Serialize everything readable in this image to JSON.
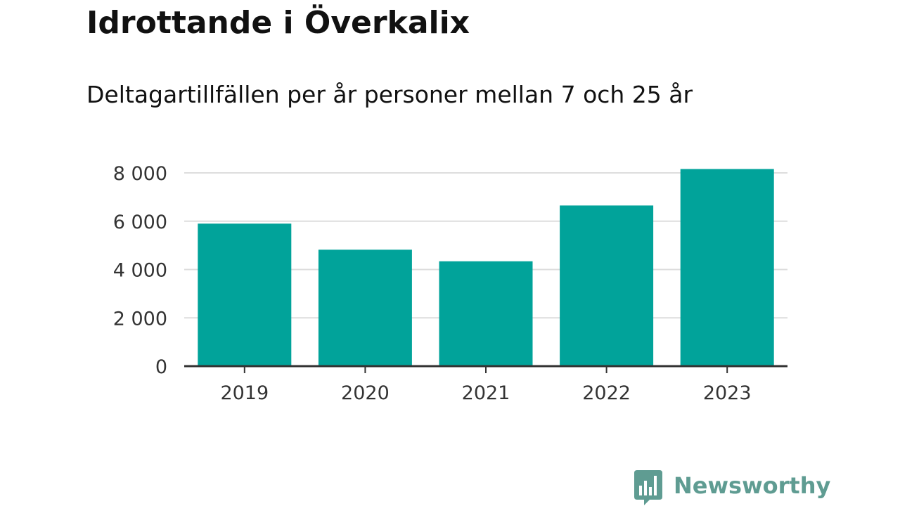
{
  "title": "Idrottande i Överkalix",
  "subtitle": "Deltagartillfällen per år personer mellan 7 och 25 år",
  "brand": {
    "name": "Newsworthy",
    "color": "#5f9c92",
    "icon": "bar-chart-speech-bubble-icon"
  },
  "chart_data": {
    "type": "bar",
    "title": "Idrottande i Överkalix",
    "subtitle": "Deltagartillfällen per år personer mellan 7 och 25 år",
    "categories": [
      "2019",
      "2020",
      "2021",
      "2022",
      "2023"
    ],
    "values": [
      5900,
      4820,
      4340,
      6650,
      8160
    ],
    "ylim": [
      0,
      8000
    ],
    "yticks": [
      0,
      2000,
      4000,
      6000,
      8000
    ],
    "ytick_labels": [
      "0",
      "2 000",
      "4 000",
      "6 000",
      "8 000"
    ],
    "grid": true,
    "legend": "none",
    "bar_color": "#01a39a",
    "grid_color": "#dddddd",
    "axis_color": "#333333"
  }
}
